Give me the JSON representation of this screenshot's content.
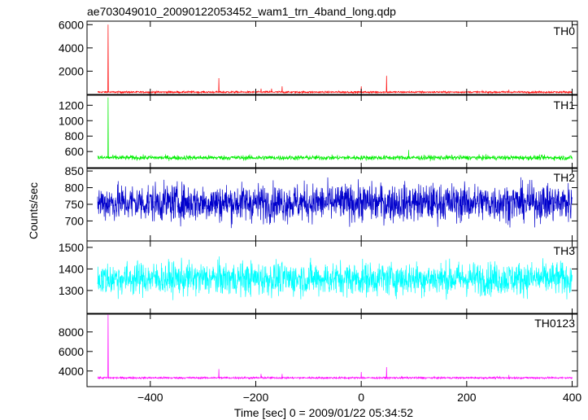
{
  "chart_data": {
    "type": "line",
    "title": "ae703049010_20090122053452_wam1_trn_4band_long.qdp",
    "xlabel": "Time [sec] 0 = 2009/01/22 05:34:52",
    "ylabel": "Counts/sec",
    "xlim": [
      -520,
      410
    ],
    "x_ticks": [
      -400,
      -200,
      0,
      200,
      400
    ],
    "x_tick_labels": [
      "−400",
      "−200",
      "0",
      "200",
      "400"
    ],
    "x_range_data": [
      -500,
      400
    ],
    "grid": false,
    "panels": [
      {
        "name": "TH0",
        "color": "#ff0000",
        "ylim": [
          0,
          6300
        ],
        "y_ticks": [
          2000,
          4000,
          6000
        ],
        "baseline": 200,
        "noise": 55,
        "spikes": [
          {
            "x": -480,
            "y": 6000
          },
          {
            "x": -270,
            "y": 1400
          },
          {
            "x": -190,
            "y": 500
          },
          {
            "x": -170,
            "y": 500
          },
          {
            "x": -150,
            "y": 700
          },
          {
            "x": 0,
            "y": 700
          },
          {
            "x": 48,
            "y": 1600
          },
          {
            "x": 280,
            "y": 400
          }
        ]
      },
      {
        "name": "TH1",
        "color": "#00ee00",
        "ylim": [
          380,
          1330
        ],
        "y_ticks": [
          600,
          800,
          1000,
          1200
        ],
        "baseline": 520,
        "noise": 22,
        "spikes": [
          {
            "x": -480,
            "y": 1300
          },
          {
            "x": 90,
            "y": 620
          }
        ]
      },
      {
        "name": "TH2",
        "color": "#0000cc",
        "ylim": [
          640,
          860
        ],
        "y_ticks": [
          700,
          750,
          800,
          850
        ],
        "baseline": 755,
        "noise": 40,
        "spikes": []
      },
      {
        "name": "TH3",
        "color": "#00ffff",
        "ylim": [
          1190,
          1530
        ],
        "y_ticks": [
          1300,
          1400,
          1500
        ],
        "baseline": 1355,
        "noise": 55,
        "spikes": []
      },
      {
        "name": "TH0123",
        "color": "#ff00ff",
        "ylim": [
          2400,
          9900
        ],
        "y_ticks": [
          4000,
          6000,
          8000
        ],
        "baseline": 3300,
        "noise": 70,
        "spikes": [
          {
            "x": -480,
            "y": 9800
          },
          {
            "x": -270,
            "y": 4200
          },
          {
            "x": -190,
            "y": 3700
          },
          {
            "x": -150,
            "y": 3700
          },
          {
            "x": 0,
            "y": 3900
          },
          {
            "x": 48,
            "y": 4400
          },
          {
            "x": 280,
            "y": 3600
          }
        ]
      }
    ]
  }
}
